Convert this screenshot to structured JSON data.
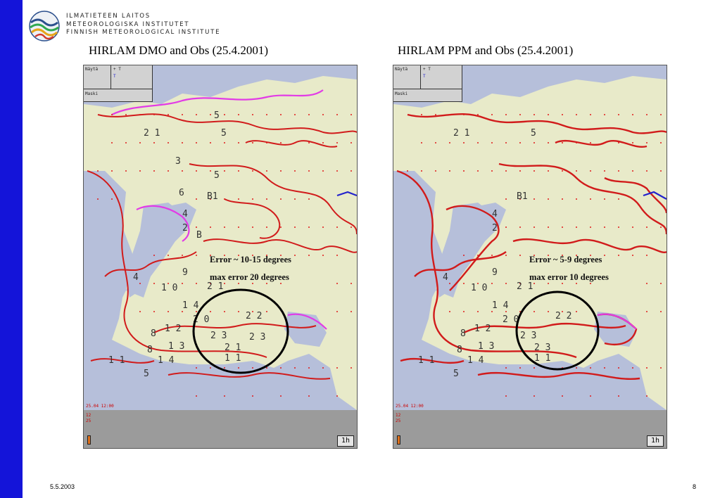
{
  "header": {
    "institute_lines": [
      "ILMATIETEEN LAITOS",
      "METEOROLOGISKA INSTITUTET",
      "FINNISH METEOROLOGICAL INSTITUTE"
    ],
    "logo_icon": "fmi-logo-icon"
  },
  "panels": [
    {
      "title": "HIRLAM DMO and Obs (25.4.2001)",
      "legend": {
        "nayta": "Näytä",
        "t": "+ T",
        "t2": "T",
        "maski": "Maski"
      },
      "timestamp": "25.04 12:00",
      "readout": [
        "12",
        "25"
      ],
      "step_label": "1h",
      "annotation": [
        "Error ~ 10-15 degrees",
        "max error 20 degrees"
      ]
    },
    {
      "title": "HIRLAM PPM and Obs (25.4.2001)",
      "legend": {
        "nayta": "Näytä",
        "t": "+ T",
        "t2": "T",
        "maski": "Maski"
      },
      "timestamp": "25.04 12:00",
      "readout": [
        "12",
        "25"
      ],
      "step_label": "1h",
      "annotation": [
        "Error ~ 5-9 degrees",
        "max error 10 degrees"
      ]
    }
  ],
  "footer": {
    "date": "5.5.2003",
    "page": "8"
  },
  "colors": {
    "sidebar": "#1414d9",
    "land": "#e8eac9",
    "sea": "#b6bfda",
    "contour": "#d11b1b",
    "zero_line": "#e23be6",
    "circle": "#000000"
  }
}
